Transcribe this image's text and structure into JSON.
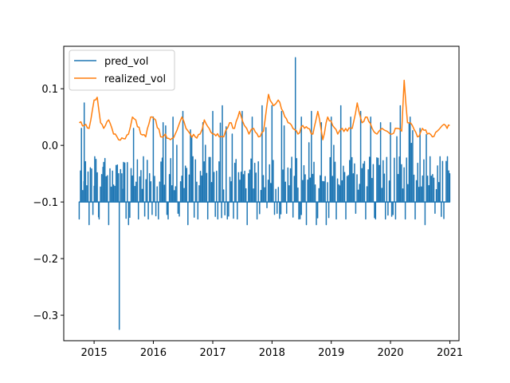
{
  "chart_data": {
    "type": "line",
    "title": "",
    "xlabel": "",
    "ylabel": "",
    "xlim": [
      "2014-06-28",
      "2021-02-26"
    ],
    "ylim": [
      -0.345,
      0.175
    ],
    "x_ticks": [
      "2015",
      "2016",
      "2017",
      "2018",
      "2019",
      "2020",
      "2021"
    ],
    "y_ticks": [
      0.1,
      0.0,
      -0.1,
      -0.2,
      -0.3
    ],
    "y_tick_labels": [
      "0.1",
      "0.0",
      "−0.1",
      "−0.2",
      "−0.3"
    ],
    "grid": false,
    "legend_position": "upper-left",
    "series": [
      {
        "name": "pred_vol",
        "color": "#1f77b4",
        "baseline": -0.1,
        "x": [
          "2014-10-01",
          "2014-10-15",
          "2014-11-01",
          "2014-12-01",
          "2015-01-05",
          "2015-02-01",
          "2015-03-01",
          "2015-04-01",
          "2015-05-01",
          "2015-06-05",
          "2015-07-01",
          "2015-08-01",
          "2015-09-01",
          "2015-10-01",
          "2015-11-01",
          "2015-12-01",
          "2016-01-01",
          "2016-02-01",
          "2016-03-01",
          "2016-04-01",
          "2016-05-01",
          "2016-06-01",
          "2016-07-01",
          "2016-08-01",
          "2016-09-01",
          "2016-10-01",
          "2016-11-01",
          "2016-12-01",
          "2017-01-01",
          "2017-02-01",
          "2017-03-01",
          "2017-04-01",
          "2017-05-01",
          "2017-06-01",
          "2017-07-01",
          "2017-08-01",
          "2017-09-01",
          "2017-10-01",
          "2017-11-01",
          "2017-12-01",
          "2018-01-01",
          "2018-02-01",
          "2018-03-01",
          "2018-04-01",
          "2018-05-25",
          "2018-06-15",
          "2018-07-01",
          "2018-08-01",
          "2018-09-01",
          "2018-10-01",
          "2018-11-01",
          "2018-12-01",
          "2019-01-01",
          "2019-02-01",
          "2019-03-01",
          "2019-04-01",
          "2019-05-01",
          "2019-06-01",
          "2019-07-01",
          "2019-08-01",
          "2019-09-01",
          "2019-10-01",
          "2019-11-01",
          "2019-12-01",
          "2020-01-01",
          "2020-02-01",
          "2020-03-01",
          "2020-04-01",
          "2020-05-01",
          "2020-06-01",
          "2020-07-01",
          "2020-08-01",
          "2020-09-01",
          "2020-10-01",
          "2020-11-01",
          "2020-12-01",
          "2020-12-31"
        ],
        "values": [
          -0.13,
          0.03,
          0.075,
          -0.14,
          -0.02,
          -0.13,
          -0.03,
          -0.14,
          -0.07,
          -0.325,
          -0.03,
          -0.14,
          0.03,
          -0.13,
          -0.02,
          -0.13,
          0.05,
          -0.13,
          0.04,
          -0.13,
          0.05,
          -0.12,
          0.06,
          -0.14,
          -0.02,
          -0.13,
          0.04,
          -0.13,
          0.06,
          -0.13,
          0.07,
          -0.13,
          0.02,
          -0.13,
          0.06,
          -0.14,
          0.05,
          -0.13,
          0.07,
          -0.11,
          0.07,
          -0.12,
          0.06,
          -0.12,
          0.155,
          -0.13,
          0.05,
          -0.14,
          0.06,
          -0.14,
          0.04,
          -0.14,
          0.05,
          -0.13,
          0.07,
          -0.13,
          0.05,
          -0.12,
          0.06,
          -0.13,
          0.05,
          -0.13,
          0.04,
          -0.13,
          0.04,
          -0.13,
          0.07,
          -0.13,
          0.05,
          -0.13,
          0.03,
          -0.14,
          -0.02,
          -0.12,
          -0.02,
          -0.1,
          -0.05
        ]
      },
      {
        "name": "realized_vol",
        "color": "#ff7f0e",
        "x": [
          "2014-10-01",
          "2014-11-01",
          "2014-12-01",
          "2015-01-01",
          "2015-01-20",
          "2015-02-10",
          "2015-03-01",
          "2015-04-01",
          "2015-05-01",
          "2015-06-01",
          "2015-07-01",
          "2015-08-01",
          "2015-08-25",
          "2015-09-15",
          "2015-10-15",
          "2015-11-15",
          "2015-12-15",
          "2016-01-15",
          "2016-02-15",
          "2016-03-15",
          "2016-04-15",
          "2016-05-15",
          "2016-06-25",
          "2016-07-20",
          "2016-08-15",
          "2016-09-15",
          "2016-10-15",
          "2016-11-10",
          "2016-12-10",
          "2017-01-10",
          "2017-02-10",
          "2017-03-10",
          "2017-04-15",
          "2017-05-15",
          "2017-06-15",
          "2017-07-15",
          "2017-08-12",
          "2017-09-10",
          "2017-10-10",
          "2017-11-10",
          "2017-12-10",
          "2018-01-10",
          "2018-02-08",
          "2018-03-10",
          "2018-04-10",
          "2018-05-10",
          "2018-06-10",
          "2018-07-10",
          "2018-08-10",
          "2018-09-10",
          "2018-10-10",
          "2018-11-10",
          "2018-12-10",
          "2019-01-10",
          "2019-02-10",
          "2019-03-10",
          "2019-04-10",
          "2019-05-10",
          "2019-06-10",
          "2019-07-10",
          "2019-08-10",
          "2019-09-10",
          "2019-10-10",
          "2019-11-10",
          "2019-12-10",
          "2020-01-10",
          "2020-02-10",
          "2020-03-10",
          "2020-03-25",
          "2020-04-15",
          "2020-05-15",
          "2020-06-15",
          "2020-07-15",
          "2020-08-15",
          "2020-09-15",
          "2020-10-15",
          "2020-11-15",
          "2020-12-15",
          "2020-12-31"
        ],
        "values": [
          0.04,
          0.035,
          0.03,
          0.08,
          0.085,
          0.04,
          0.03,
          0.045,
          0.02,
          0.01,
          0.012,
          0.02,
          0.05,
          0.045,
          0.02,
          0.015,
          0.05,
          0.045,
          0.015,
          0.02,
          0.01,
          0.02,
          0.05,
          0.03,
          0.02,
          0.015,
          0.02,
          0.045,
          0.03,
          0.02,
          0.015,
          0.015,
          0.04,
          0.03,
          0.06,
          0.035,
          0.02,
          0.03,
          0.015,
          0.025,
          0.09,
          0.07,
          0.08,
          0.06,
          0.04,
          0.03,
          0.02,
          0.035,
          0.03,
          0.02,
          0.06,
          0.01,
          0.05,
          0.035,
          0.02,
          0.03,
          0.025,
          0.03,
          0.075,
          0.04,
          0.05,
          0.03,
          0.02,
          0.03,
          0.025,
          0.02,
          0.03,
          0.025,
          0.115,
          0.04,
          0.035,
          0.015,
          0.03,
          0.02,
          0.015,
          0.025,
          0.035,
          0.03,
          0.035
        ]
      }
    ]
  }
}
